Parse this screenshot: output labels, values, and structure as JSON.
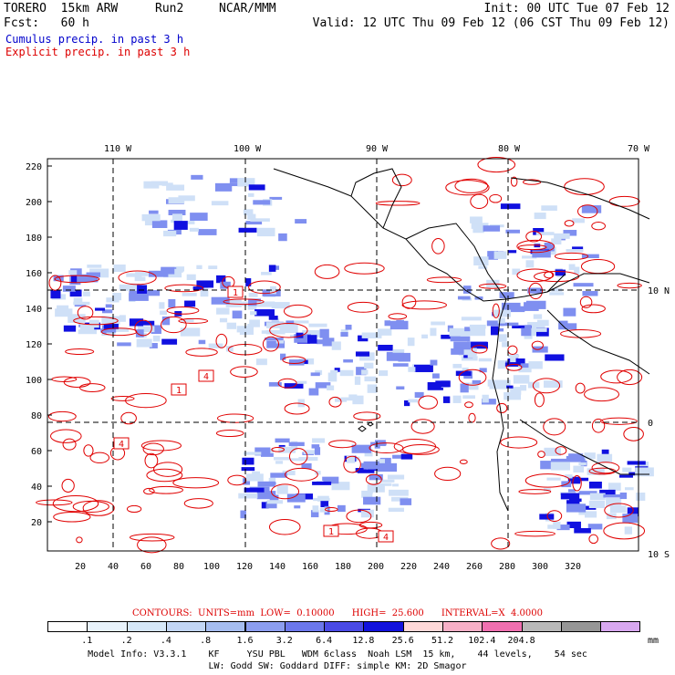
{
  "header": {
    "model": "TORERO  15km ARW",
    "run": "Run2",
    "org": "NCAR/MMM",
    "init": "Init: 00 UTC Tue 07 Feb 12",
    "fcst": "Fcst:   60 h",
    "valid": "Valid: 12 UTC Thu 09 Feb 12 (06 CST Thu 09 Feb 12)",
    "cumulus": "Cumulus precip. in past 3 h",
    "explicit": "Explicit precip. in past 3 h"
  },
  "map": {
    "top_lon_labels": [
      "110 W",
      "100 W",
      "90 W",
      "80 W",
      "70 W"
    ],
    "right_lat_labels": [
      "10 N",
      "0",
      "10 S"
    ],
    "y_ticks": [
      "220",
      "200",
      "180",
      "160",
      "140",
      "120",
      "100",
      "80",
      "60",
      "40",
      "20"
    ],
    "x_ticks": [
      "20",
      "40",
      "60",
      "80",
      "100",
      "120",
      "140",
      "160",
      "180",
      "200",
      "220",
      "240",
      "260",
      "280",
      "300",
      "320"
    ],
    "contour_labels": [
      "1",
      "4",
      "1",
      "4",
      "1",
      "4"
    ],
    "colors": {
      "precip_light": "#cfe0f7",
      "precip_mid": "#7f8ff0",
      "precip_dark": "#1010e0",
      "contour": "#e00000",
      "land": "#000000",
      "grid": "#000000"
    }
  },
  "contours_line": {
    "label": "CONTOURS:",
    "units": "UNITS=mm",
    "low": "LOW=  0.10000",
    "high": "HIGH=  25.600",
    "interval": "INTERVAL=X  4.0000"
  },
  "legend": {
    "colors": [
      "#ffffff",
      "#e8f2fb",
      "#d6e7f8",
      "#c3d6f5",
      "#a6bdf0",
      "#8c9ef0",
      "#6c78ec",
      "#4a4ae6",
      "#1212dd",
      "#ffd8d8",
      "#f7b0c7",
      "#f070b0",
      "#b8b8b8",
      "#969696",
      "#d8a8f0"
    ],
    "labels": [
      ".1",
      ".2",
      ".4",
      ".8",
      "1.6",
      "3.2",
      "6.4",
      "12.8",
      "25.6",
      "51.2",
      "102.4",
      "204.8"
    ],
    "unit": "mm"
  },
  "footer": {
    "line1": "Model Info: V3.3.1    KF     YSU PBL   WDM 6class  Noah LSM  15 km,    44 levels,    54 sec",
    "line2": "LW: Godd SW: Goddard DIFF: simple KM: 2D Smagor"
  }
}
